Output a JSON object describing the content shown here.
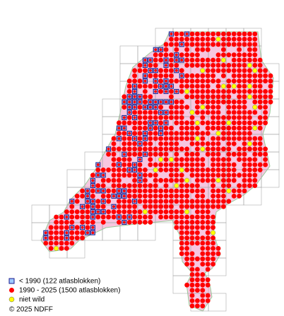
{
  "legend": {
    "items": [
      {
        "label": "< 1990   (122 atlasblokken)"
      },
      {
        "label": "1990 - 2025 (1500 atlasblokken)"
      },
      {
        "label": "niet wild"
      }
    ]
  },
  "copyright": "© 2025 NDFF"
}
